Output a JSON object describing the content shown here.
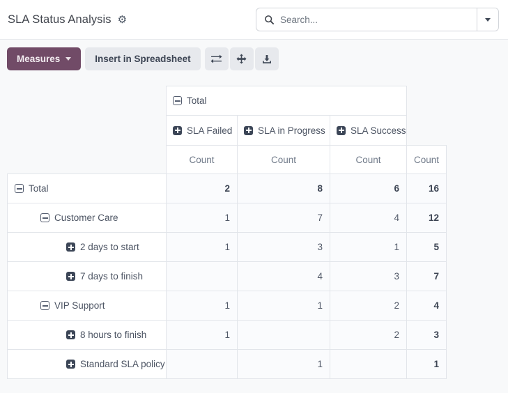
{
  "colors": {
    "accent": "#714B67",
    "page_bg": "#f8f9fa",
    "header_cell_bg": "#ffffff",
    "data_cell_bg": "#fafbfd",
    "table_border": "#e2e5ea",
    "text_dark": "#3d4554",
    "text": "#4b5362",
    "text_muted": "#707a89"
  },
  "header": {
    "title": "SLA Status Analysis",
    "search_placeholder": "Search..."
  },
  "icons": {
    "gear": "⚙",
    "search": "magnifier",
    "search_caret": "caret-down",
    "measures_caret": "caret-down",
    "flip_axis": "exchange-arrows",
    "expand_all": "move-arrows",
    "download": "download-tray",
    "expanded_group": "minus-square",
    "collapsed_group": "plus-square"
  },
  "toolbar": {
    "measures_label": "Measures",
    "insert_label": "Insert in Spreadsheet"
  },
  "pivot": {
    "col_group_label": "Total",
    "column_groups": [
      "SLA Failed",
      "SLA in Progress",
      "SLA Success"
    ],
    "measure_label": "Count",
    "rows": [
      {
        "label": "Total",
        "level": 0,
        "expanded": true,
        "values": [
          "2",
          "8",
          "6",
          "16"
        ]
      },
      {
        "label": "Customer Care",
        "level": 1,
        "expanded": true,
        "values": [
          "1",
          "7",
          "4",
          "12"
        ]
      },
      {
        "label": "2 days to start",
        "level": 2,
        "expanded": false,
        "values": [
          "1",
          "3",
          "1",
          "5"
        ]
      },
      {
        "label": "7 days to finish",
        "level": 2,
        "expanded": false,
        "values": [
          "",
          "4",
          "3",
          "7"
        ]
      },
      {
        "label": "VIP Support",
        "level": 1,
        "expanded": true,
        "values": [
          "1",
          "1",
          "2",
          "4"
        ]
      },
      {
        "label": "8 hours to finish",
        "level": 2,
        "expanded": false,
        "values": [
          "1",
          "",
          "2",
          "3"
        ]
      },
      {
        "label": "Standard SLA policy",
        "level": 2,
        "expanded": false,
        "values": [
          "",
          "1",
          "",
          "1"
        ]
      }
    ]
  }
}
